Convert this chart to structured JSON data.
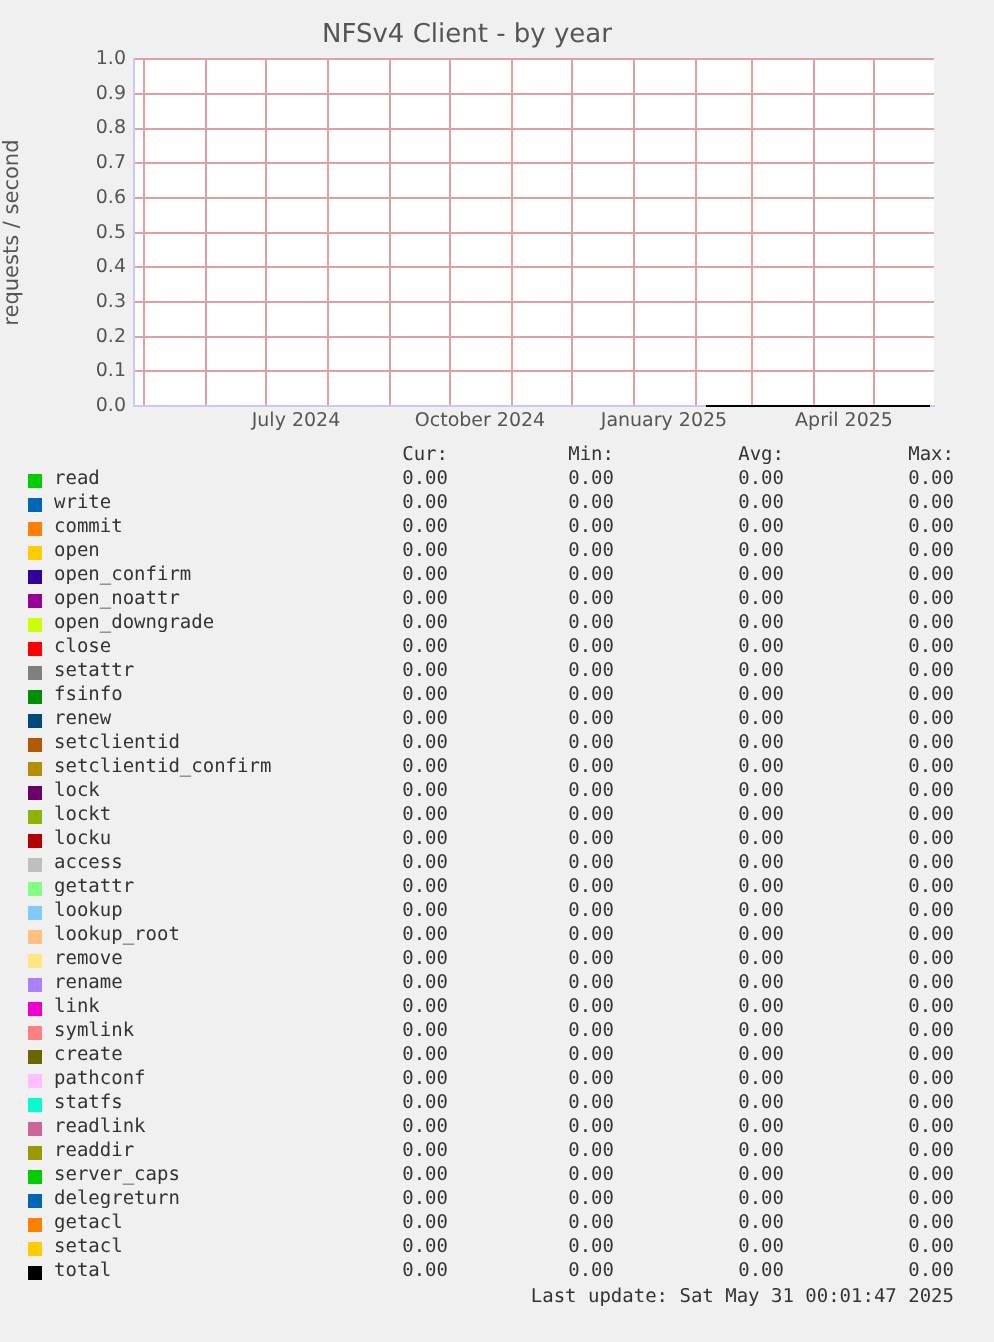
{
  "chart_data": {
    "type": "line",
    "title": "NFSv4 Client - by year",
    "ylabel": "requests / second",
    "x": [
      "2025-02-06",
      "2025-05-29"
    ],
    "xlim": [
      "2024-04-26",
      "2025-05-31"
    ],
    "xticks": [
      {
        "value": "2024-05-01",
        "label": null
      },
      {
        "value": "2024-06-01",
        "label": null
      },
      {
        "value": "2024-07-01",
        "label": null
      },
      {
        "value": "2024-07-16",
        "label": "July 2024"
      },
      {
        "value": "2024-08-01",
        "label": null
      },
      {
        "value": "2024-09-01",
        "label": null
      },
      {
        "value": "2024-10-01",
        "label": null
      },
      {
        "value": "2024-10-16",
        "label": "October 2024"
      },
      {
        "value": "2024-11-01",
        "label": null
      },
      {
        "value": "2024-12-01",
        "label": null
      },
      {
        "value": "2025-01-01",
        "label": null
      },
      {
        "value": "2025-01-16",
        "label": "January 2025"
      },
      {
        "value": "2025-02-01",
        "label": null
      },
      {
        "value": "2025-03-01",
        "label": null
      },
      {
        "value": "2025-04-01",
        "label": null
      },
      {
        "value": "2025-04-16",
        "label": "April 2025"
      },
      {
        "value": "2025-05-01",
        "label": null
      }
    ],
    "ylim": [
      0,
      1
    ],
    "yticks": [
      {
        "value": 0,
        "label": "0.0"
      },
      {
        "value": 0.1,
        "label": "0.1"
      },
      {
        "value": 0.2,
        "label": "0.2"
      },
      {
        "value": 0.3,
        "label": "0.3"
      },
      {
        "value": 0.4,
        "label": "0.4"
      },
      {
        "value": 0.5,
        "label": "0.5"
      },
      {
        "value": 0.6,
        "label": "0.6"
      },
      {
        "value": 0.7,
        "label": "0.7"
      },
      {
        "value": 0.8,
        "label": "0.8"
      },
      {
        "value": 0.9,
        "label": "0.9"
      },
      {
        "value": 1,
        "label": "1.0"
      }
    ],
    "grid": true,
    "legend": "bottom",
    "marker": "none",
    "line_style": "solid",
    "annotations": [
      "Cur:",
      "Min:",
      "Avg:",
      "Max:",
      "0.00",
      "0.00",
      "0.00",
      "0.00",
      "0.00",
      "0.00",
      "0.00",
      "0.00",
      "0.00",
      "0.00",
      "0.00",
      "0.00",
      "0.00",
      "0.00",
      "0.00",
      "0.00",
      "0.00",
      "0.00",
      "0.00",
      "0.00",
      "0.00",
      "0.00",
      "0.00",
      "0.00",
      "0.00",
      "0.00",
      "0.00",
      "0.00",
      "0.00",
      "0.00",
      "0.00",
      "0.00",
      "0.00",
      "0.00",
      "0.00",
      "0.00",
      "0.00",
      "0.00",
      "0.00",
      "0.00",
      "0.00",
      "0.00",
      "0.00",
      "0.00",
      "0.00",
      "0.00",
      "0.00",
      "0.00",
      "0.00",
      "0.00",
      "0.00",
      "0.00",
      "0.00",
      "0.00",
      "0.00",
      "0.00",
      "0.00",
      "0.00",
      "0.00",
      "0.00",
      "0.00",
      "0.00",
      "0.00",
      "0.00",
      "0.00",
      "0.00",
      "0.00",
      "0.00",
      "0.00",
      "0.00",
      "0.00",
      "0.00",
      "0.00",
      "0.00",
      "0.00",
      "0.00",
      "0.00",
      "0.00",
      "0.00",
      "0.00",
      "0.00",
      "0.00",
      "0.00",
      "0.00",
      "0.00",
      "0.00",
      "0.00",
      "0.00",
      "0.00",
      "0.00",
      "0.00",
      "0.00",
      "0.00",
      "0.00",
      "0.00",
      "0.00",
      "0.00",
      "0.00",
      "0.00",
      "0.00",
      "0.00",
      "0.00",
      "0.00",
      "0.00",
      "0.00",
      "0.00",
      "0.00",
      "0.00",
      "0.00",
      "0.00",
      "0.00",
      "0.00",
      "0.00",
      "0.00",
      "0.00",
      "0.00",
      "0.00",
      "0.00",
      "0.00",
      "0.00",
      "0.00",
      "0.00",
      "0.00",
      "0.00",
      "0.00",
      "0.00",
      "0.00",
      "0.00",
      "0.00",
      "0.00",
      "0.00",
      "0.00",
      "0.00",
      "0.00",
      "0.00",
      "0.00",
      "Last update: Sat May 31 00:01:47 2025"
    ],
    "series": [
      {
        "name": "read",
        "color": "#00cc00",
        "values": [
          null,
          null
        ]
      },
      {
        "name": "write",
        "color": "#0066b3",
        "values": [
          null,
          null
        ]
      },
      {
        "name": "commit",
        "color": "#ff8000",
        "values": [
          null,
          null
        ]
      },
      {
        "name": "open",
        "color": "#ffcc00",
        "values": [
          null,
          null
        ]
      },
      {
        "name": "open_confirm",
        "color": "#330099",
        "values": [
          null,
          null
        ]
      },
      {
        "name": "open_noattr",
        "color": "#990099",
        "values": [
          null,
          null
        ]
      },
      {
        "name": "open_downgrade",
        "color": "#ccff00",
        "values": [
          null,
          null
        ]
      },
      {
        "name": "close",
        "color": "#ff0000",
        "values": [
          null,
          null
        ]
      },
      {
        "name": "setattr",
        "color": "#808080",
        "values": [
          null,
          null
        ]
      },
      {
        "name": "fsinfo",
        "color": "#008f00",
        "values": [
          null,
          null
        ]
      },
      {
        "name": "renew",
        "color": "#00487d",
        "values": [
          null,
          null
        ]
      },
      {
        "name": "setclientid",
        "color": "#b35a00",
        "values": [
          null,
          null
        ]
      },
      {
        "name": "setclientid_confirm",
        "color": "#b38f00",
        "values": [
          null,
          null
        ]
      },
      {
        "name": "lock",
        "color": "#6b006b",
        "values": [
          null,
          null
        ]
      },
      {
        "name": "lockt",
        "color": "#8fb300",
        "values": [
          null,
          null
        ]
      },
      {
        "name": "locku",
        "color": "#b30000",
        "values": [
          null,
          null
        ]
      },
      {
        "name": "access",
        "color": "#bebebe",
        "values": [
          null,
          null
        ]
      },
      {
        "name": "getattr",
        "color": "#80ff80",
        "values": [
          null,
          null
        ]
      },
      {
        "name": "lookup",
        "color": "#80c9ff",
        "values": [
          null,
          null
        ]
      },
      {
        "name": "lookup_root",
        "color": "#ffc080",
        "values": [
          null,
          null
        ]
      },
      {
        "name": "remove",
        "color": "#ffe680",
        "values": [
          null,
          null
        ]
      },
      {
        "name": "rename",
        "color": "#aa80ff",
        "values": [
          null,
          null
        ]
      },
      {
        "name": "link",
        "color": "#ee00cc",
        "values": [
          null,
          null
        ]
      },
      {
        "name": "symlink",
        "color": "#ff8080",
        "values": [
          null,
          null
        ]
      },
      {
        "name": "create",
        "color": "#666600",
        "values": [
          null,
          null
        ]
      },
      {
        "name": "pathconf",
        "color": "#ffbfff",
        "values": [
          null,
          null
        ]
      },
      {
        "name": "statfs",
        "color": "#00ffcc",
        "values": [
          null,
          null
        ]
      },
      {
        "name": "readlink",
        "color": "#cc6699",
        "values": [
          null,
          null
        ]
      },
      {
        "name": "readdir",
        "color": "#999900",
        "values": [
          null,
          null
        ]
      },
      {
        "name": "server_caps",
        "color": "#00cc00",
        "values": [
          null,
          null
        ]
      },
      {
        "name": "delegreturn",
        "color": "#0066b3",
        "values": [
          null,
          null
        ]
      },
      {
        "name": "getacl",
        "color": "#ff8000",
        "values": [
          null,
          null
        ]
      },
      {
        "name": "setacl",
        "color": "#ffcc00",
        "values": [
          null,
          null
        ]
      },
      {
        "name": "total",
        "color": "#000000",
        "values": [
          0,
          0
        ]
      }
    ]
  }
}
